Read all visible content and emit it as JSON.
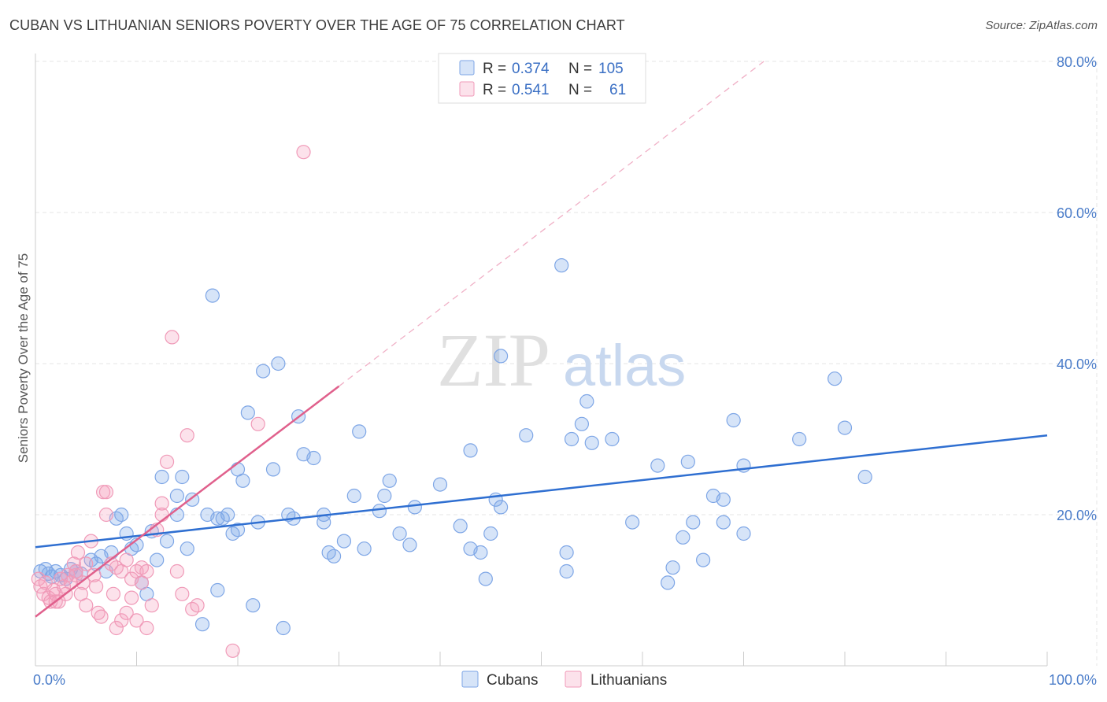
{
  "title": "CUBAN VS LITHUANIAN SENIORS POVERTY OVER THE AGE OF 75 CORRELATION CHART",
  "source": "Source: ZipAtlas.com",
  "watermark": {
    "zip": "ZIP",
    "atlas": "atlas"
  },
  "colors": {
    "cuban_fill": "rgba(120,165,232,0.30)",
    "cuban_stroke": "#7ea6e6",
    "cuban_line": "#2f6fd1",
    "lith_fill": "rgba(244,160,188,0.30)",
    "lith_stroke": "#f09ab8",
    "lith_line": "#e0608c",
    "tick_color": "#4a7cc9"
  },
  "legend": {
    "rows": [
      {
        "r_label": "R = ",
        "r_value": "0.374",
        "n_label": "N = ",
        "n_value": "105"
      },
      {
        "r_label": "R = ",
        "r_value": "0.541",
        "n_label": "N = ",
        "n_value": "61"
      }
    ]
  },
  "chart_data": {
    "type": "scatter",
    "title": "CUBAN VS LITHUANIAN SENIORS POVERTY OVER THE AGE OF 75 CORRELATION CHART",
    "xlabel": "",
    "ylabel": "Seniors Poverty Over the Age of 75",
    "xlim": [
      0,
      100
    ],
    "ylim": [
      0,
      80
    ],
    "x_tick_labels": [
      "0.0%",
      "100.0%"
    ],
    "y_tick_labels": [
      "20.0%",
      "40.0%",
      "60.0%",
      "80.0%"
    ],
    "y_ticks": [
      20,
      40,
      60,
      80
    ],
    "grid": true,
    "legend_position": "top-center",
    "series": [
      {
        "name": "Cubans",
        "r": 0.374,
        "n": 105,
        "trend": {
          "x0": 0,
          "y0": 15.7,
          "x1": 100,
          "y1": 30.5
        },
        "points": [
          [
            0.5,
            12.5
          ],
          [
            1,
            12.8
          ],
          [
            1.3,
            12.2
          ],
          [
            1.6,
            11.8
          ],
          [
            2,
            12.5
          ],
          [
            2.5,
            12.0
          ],
          [
            3,
            11.5
          ],
          [
            3.5,
            12.8
          ],
          [
            4,
            12.5
          ],
          [
            4.5,
            12.2
          ],
          [
            5.5,
            14.0
          ],
          [
            6,
            13.5
          ],
          [
            6.5,
            14.5
          ],
          [
            7,
            12.5
          ],
          [
            7.5,
            15.0
          ],
          [
            8,
            19.5
          ],
          [
            8.5,
            20.0
          ],
          [
            9,
            17.5
          ],
          [
            9.5,
            15.5
          ],
          [
            10,
            16.0
          ],
          [
            10.5,
            11.0
          ],
          [
            11,
            9.5
          ],
          [
            11.5,
            17.8
          ],
          [
            12,
            14.0
          ],
          [
            12.5,
            25.0
          ],
          [
            13,
            16.5
          ],
          [
            14,
            20.0
          ],
          [
            14,
            22.5
          ],
          [
            14.5,
            25.0
          ],
          [
            15,
            15.5
          ],
          [
            15.5,
            22.0
          ],
          [
            16.5,
            5.5
          ],
          [
            17,
            20.0
          ],
          [
            17.5,
            49.0
          ],
          [
            18,
            19.5
          ],
          [
            18,
            10.0
          ],
          [
            18.5,
            19.5
          ],
          [
            19,
            20.0
          ],
          [
            19.5,
            17.5
          ],
          [
            20,
            18.0
          ],
          [
            20,
            26.0
          ],
          [
            20.5,
            24.5
          ],
          [
            21,
            33.5
          ],
          [
            21.5,
            8.0
          ],
          [
            22,
            19.0
          ],
          [
            22.5,
            39.0
          ],
          [
            23.5,
            26.0
          ],
          [
            24,
            40.0
          ],
          [
            24.5,
            5.0
          ],
          [
            25,
            20.0
          ],
          [
            25.5,
            19.5
          ],
          [
            26,
            33.0
          ],
          [
            26.5,
            28.0
          ],
          [
            27.5,
            27.5
          ],
          [
            28.5,
            19.0
          ],
          [
            28.5,
            20.0
          ],
          [
            29,
            15.0
          ],
          [
            29.5,
            14.5
          ],
          [
            30.5,
            16.5
          ],
          [
            31.5,
            22.5
          ],
          [
            32,
            31.0
          ],
          [
            32.5,
            15.5
          ],
          [
            34,
            20.5
          ],
          [
            34.5,
            22.5
          ],
          [
            35,
            24.5
          ],
          [
            36,
            17.5
          ],
          [
            37,
            16.0
          ],
          [
            37.5,
            21.0
          ],
          [
            40,
            24.0
          ],
          [
            42,
            18.5
          ],
          [
            43,
            28.5
          ],
          [
            43,
            15.5
          ],
          [
            44,
            15.0
          ],
          [
            44.5,
            11.5
          ],
          [
            45,
            17.5
          ],
          [
            45.5,
            22.0
          ],
          [
            46,
            41.0
          ],
          [
            46,
            21.0
          ],
          [
            48.5,
            30.5
          ],
          [
            52,
            53.0
          ],
          [
            52.5,
            12.5
          ],
          [
            52.5,
            15.0
          ],
          [
            53,
            30.0
          ],
          [
            54,
            32.0
          ],
          [
            54.5,
            35.0
          ],
          [
            55,
            29.5
          ],
          [
            57,
            30.0
          ],
          [
            59,
            19.0
          ],
          [
            61.5,
            26.5
          ],
          [
            62.5,
            11.0
          ],
          [
            63,
            13.0
          ],
          [
            64,
            17.0
          ],
          [
            64.5,
            27.0
          ],
          [
            65,
            19.0
          ],
          [
            66,
            14.0
          ],
          [
            67,
            22.5
          ],
          [
            68,
            22.0
          ],
          [
            68,
            19.0
          ],
          [
            69,
            32.5
          ],
          [
            70,
            17.5
          ],
          [
            70,
            26.5
          ],
          [
            75.5,
            30.0
          ],
          [
            79,
            38.0
          ],
          [
            80,
            31.5
          ],
          [
            82,
            25.0
          ]
        ]
      },
      {
        "name": "Lithuanians",
        "r": 0.541,
        "n": 61,
        "trend": {
          "x0": 0,
          "y0": 6.5,
          "x1": 30,
          "y1": 37.0,
          "dashed_x1": 72,
          "dashed_y1": 80
        },
        "points": [
          [
            0.3,
            11.5
          ],
          [
            0.5,
            10.5
          ],
          [
            0.8,
            9.5
          ],
          [
            1,
            11.0
          ],
          [
            1.3,
            9.0
          ],
          [
            1.5,
            8.5
          ],
          [
            1.8,
            10.0
          ],
          [
            2,
            9.5
          ],
          [
            2.3,
            8.5
          ],
          [
            2.5,
            11.5
          ],
          [
            2.8,
            10.5
          ],
          [
            3,
            9.5
          ],
          [
            3.2,
            12.0
          ],
          [
            3.5,
            11.0
          ],
          [
            3.8,
            13.5
          ],
          [
            4,
            12.5
          ],
          [
            4.2,
            15.0
          ],
          [
            4.5,
            9.5
          ],
          [
            4.7,
            11.0
          ],
          [
            5,
            13.5
          ],
          [
            5,
            8.0
          ],
          [
            5.5,
            16.5
          ],
          [
            5.8,
            12.0
          ],
          [
            6,
            10.5
          ],
          [
            6.2,
            7.0
          ],
          [
            6.5,
            6.5
          ],
          [
            6.7,
            23.0
          ],
          [
            7,
            20.0
          ],
          [
            7,
            23.0
          ],
          [
            7.5,
            13.5
          ],
          [
            7.7,
            9.5
          ],
          [
            8,
            13.0
          ],
          [
            8,
            5.0
          ],
          [
            8.5,
            12.5
          ],
          [
            8.5,
            6.0
          ],
          [
            9,
            14.0
          ],
          [
            9,
            7.0
          ],
          [
            9.5,
            11.5
          ],
          [
            9.5,
            9.0
          ],
          [
            10,
            12.5
          ],
          [
            10,
            6.0
          ],
          [
            10.5,
            13.0
          ],
          [
            10.5,
            11.0
          ],
          [
            11,
            12.5
          ],
          [
            11,
            5.0
          ],
          [
            11.5,
            8.0
          ],
          [
            12,
            18.0
          ],
          [
            12.5,
            21.5
          ],
          [
            12.5,
            20.0
          ],
          [
            13,
            27.0
          ],
          [
            13.5,
            43.5
          ],
          [
            14,
            12.5
          ],
          [
            14.5,
            9.5
          ],
          [
            15,
            30.5
          ],
          [
            15.5,
            7.5
          ],
          [
            16,
            8.0
          ],
          [
            19.5,
            2.0
          ],
          [
            22,
            32.0
          ],
          [
            26.5,
            68.0
          ],
          [
            4,
            12.0
          ],
          [
            2,
            8.5
          ]
        ]
      }
    ]
  },
  "bottom_legend": {
    "cubans": "Cubans",
    "lithuanians": "Lithuanians"
  }
}
